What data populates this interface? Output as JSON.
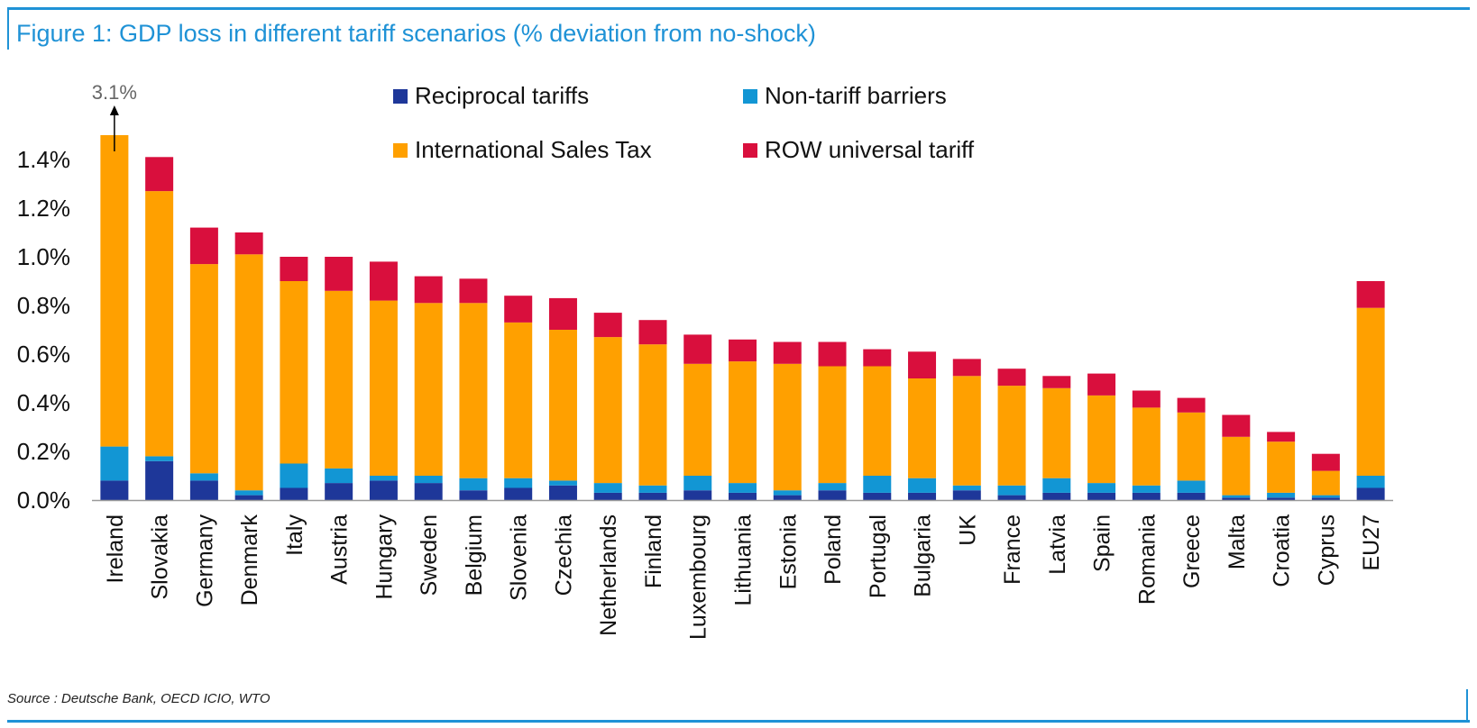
{
  "title": "Figure 1: GDP loss in different tariff scenarios (% deviation from no-shock)",
  "source": "Source : Deutsche Bank, OECD ICIO, WTO",
  "colors": {
    "reciprocal": "#1e3799",
    "nontariff": "#1296d4",
    "ist": "#ffa000",
    "row": "#d90f3d",
    "axis": "#9a9a9a",
    "text": "#111111"
  },
  "chart_data": {
    "type": "bar",
    "stacked": true,
    "title": "Figure 1: GDP loss in different tariff scenarios (% deviation from no-shock)",
    "xlabel": "",
    "ylabel": "",
    "ylim": [
      0,
      1.5
    ],
    "yticks": [
      0.0,
      0.2,
      0.4,
      0.6,
      0.8,
      1.0,
      1.2,
      1.4
    ],
    "ytick_labels": [
      "0.0%",
      "0.2%",
      "0.4%",
      "0.6%",
      "0.8%",
      "1.0%",
      "1.2%",
      "1.4%"
    ],
    "legend_position": "top",
    "categories": [
      "Ireland",
      "Slovakia",
      "Germany",
      "Denmark",
      "Italy",
      "Austria",
      "Hungary",
      "Sweden",
      "Belgium",
      "Slovenia",
      "Czechia",
      "Netherlands",
      "Finland",
      "Luxembourg",
      "Lithuania",
      "Estonia",
      "Poland",
      "Portugal",
      "Bulgaria",
      "UK",
      "France",
      "Latvia",
      "Spain",
      "Romania",
      "Greece",
      "Malta",
      "Croatia",
      "Cyprus",
      "EU27"
    ],
    "series": [
      {
        "key": "reciprocal",
        "name": "Reciprocal tariffs",
        "values": [
          0.08,
          0.16,
          0.08,
          0.02,
          0.05,
          0.07,
          0.08,
          0.07,
          0.04,
          0.05,
          0.06,
          0.03,
          0.03,
          0.04,
          0.03,
          0.02,
          0.04,
          0.03,
          0.03,
          0.04,
          0.02,
          0.03,
          0.03,
          0.03,
          0.03,
          0.01,
          0.01,
          0.01,
          0.05
        ]
      },
      {
        "key": "nontariff",
        "name": "Non-tariff barriers",
        "values": [
          0.14,
          0.02,
          0.03,
          0.02,
          0.1,
          0.06,
          0.02,
          0.03,
          0.05,
          0.04,
          0.02,
          0.04,
          0.03,
          0.06,
          0.04,
          0.02,
          0.03,
          0.07,
          0.06,
          0.02,
          0.04,
          0.06,
          0.04,
          0.03,
          0.05,
          0.01,
          0.02,
          0.01,
          0.05
        ]
      },
      {
        "key": "ist",
        "name": "International Sales Tax",
        "values": [
          1.28,
          1.09,
          0.86,
          0.97,
          0.75,
          0.73,
          0.72,
          0.71,
          0.72,
          0.64,
          0.62,
          0.6,
          0.58,
          0.46,
          0.5,
          0.52,
          0.48,
          0.45,
          0.41,
          0.45,
          0.41,
          0.37,
          0.36,
          0.32,
          0.28,
          0.24,
          0.21,
          0.1,
          0.69
        ]
      },
      {
        "key": "row",
        "name": "ROW universal tariff",
        "values": [
          0.0,
          0.14,
          0.15,
          0.09,
          0.1,
          0.14,
          0.16,
          0.11,
          0.1,
          0.11,
          0.13,
          0.1,
          0.1,
          0.12,
          0.09,
          0.09,
          0.1,
          0.07,
          0.11,
          0.07,
          0.07,
          0.05,
          0.09,
          0.07,
          0.06,
          0.09,
          0.04,
          0.07,
          0.11
        ]
      }
    ],
    "legend": [
      "Reciprocal tariffs",
      "Non-tariff barriers",
      "International Sales Tax",
      "ROW universal tariff"
    ],
    "annotation": {
      "text": "3.1%",
      "category": "Ireland",
      "note": "arrow"
    }
  }
}
